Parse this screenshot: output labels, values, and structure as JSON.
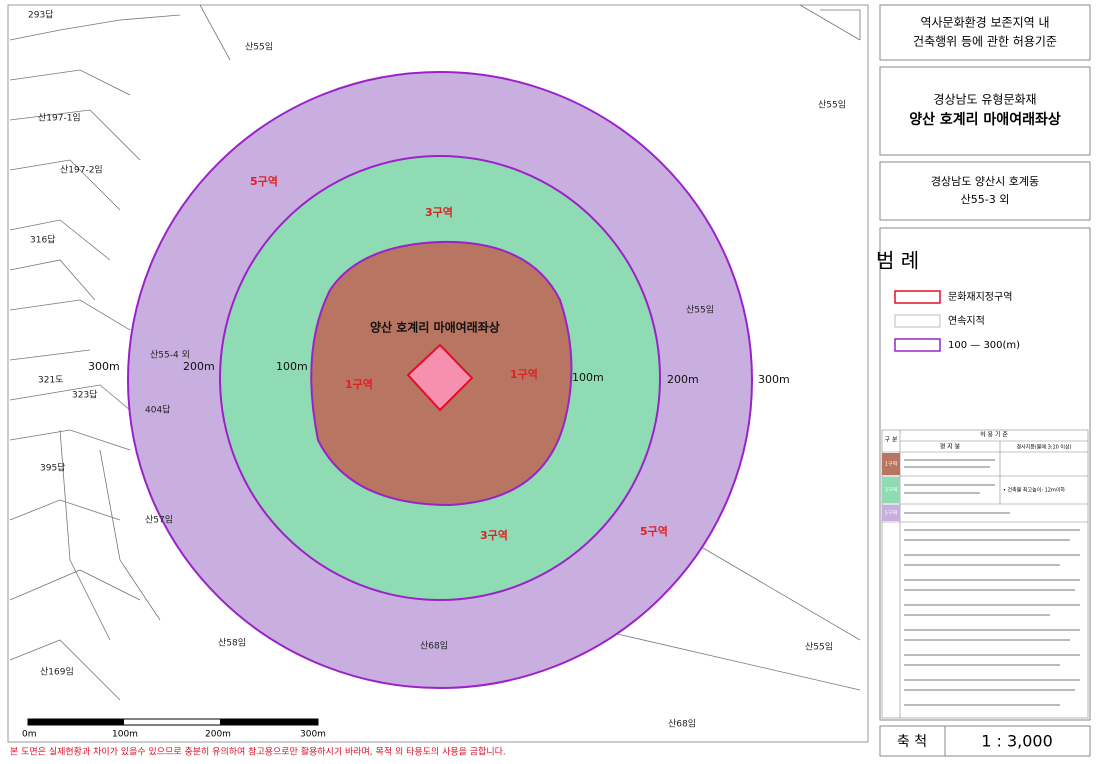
{
  "map": {
    "parcels": [
      "293답",
      "산55임",
      "산197-1임",
      "산197-2임",
      "316답",
      "산55-4 외",
      "321도",
      "323답",
      "404답",
      "395답",
      "산57임",
      "산58임",
      "산169임",
      "산68임",
      "산55임",
      "산55임",
      "산55임",
      "산68임"
    ],
    "zones": [
      "5구역",
      "3구역",
      "1구역",
      "1구역",
      "3구역",
      "5구역"
    ],
    "distances": [
      "300m",
      "200m",
      "100m",
      "100m",
      "200m",
      "300m"
    ],
    "site_name": "양산 호계리 마애여래좌상",
    "scale_bar": [
      "0m",
      "100m",
      "200m",
      "300m"
    ]
  },
  "panel": {
    "heading": [
      "역사문화환경 보존지역 내",
      "건축행위 등에 관한 허용기준"
    ],
    "designation": "경상남도 유형문화재",
    "name": "양산 호계리 마애여래좌상",
    "address": [
      "경상남도 양산시 호계동",
      "산55-3 외"
    ],
    "legend_title": "범 례",
    "legend": [
      "문화재지정구역",
      "연속지적",
      "100 — 300(m)"
    ],
    "table": {
      "header": [
        "구 분",
        "허 용 기 준",
        "평 지 붕",
        "경사지붕(물매 3:10 이상)"
      ],
      "rows": [
        "1구역",
        "3구역",
        "5구역"
      ],
      "note": "• 건축물 최고높이: 12m이하"
    },
    "scale_label": "축 척",
    "scale": "1 : 3,000"
  },
  "footer": "본 도면은 실제현황과 차이가 있을수 있으므로 충분히 유의하여 참고용으로만 활용하시기 바라며, 목적 외 타용도의 사용을 금합니다."
}
